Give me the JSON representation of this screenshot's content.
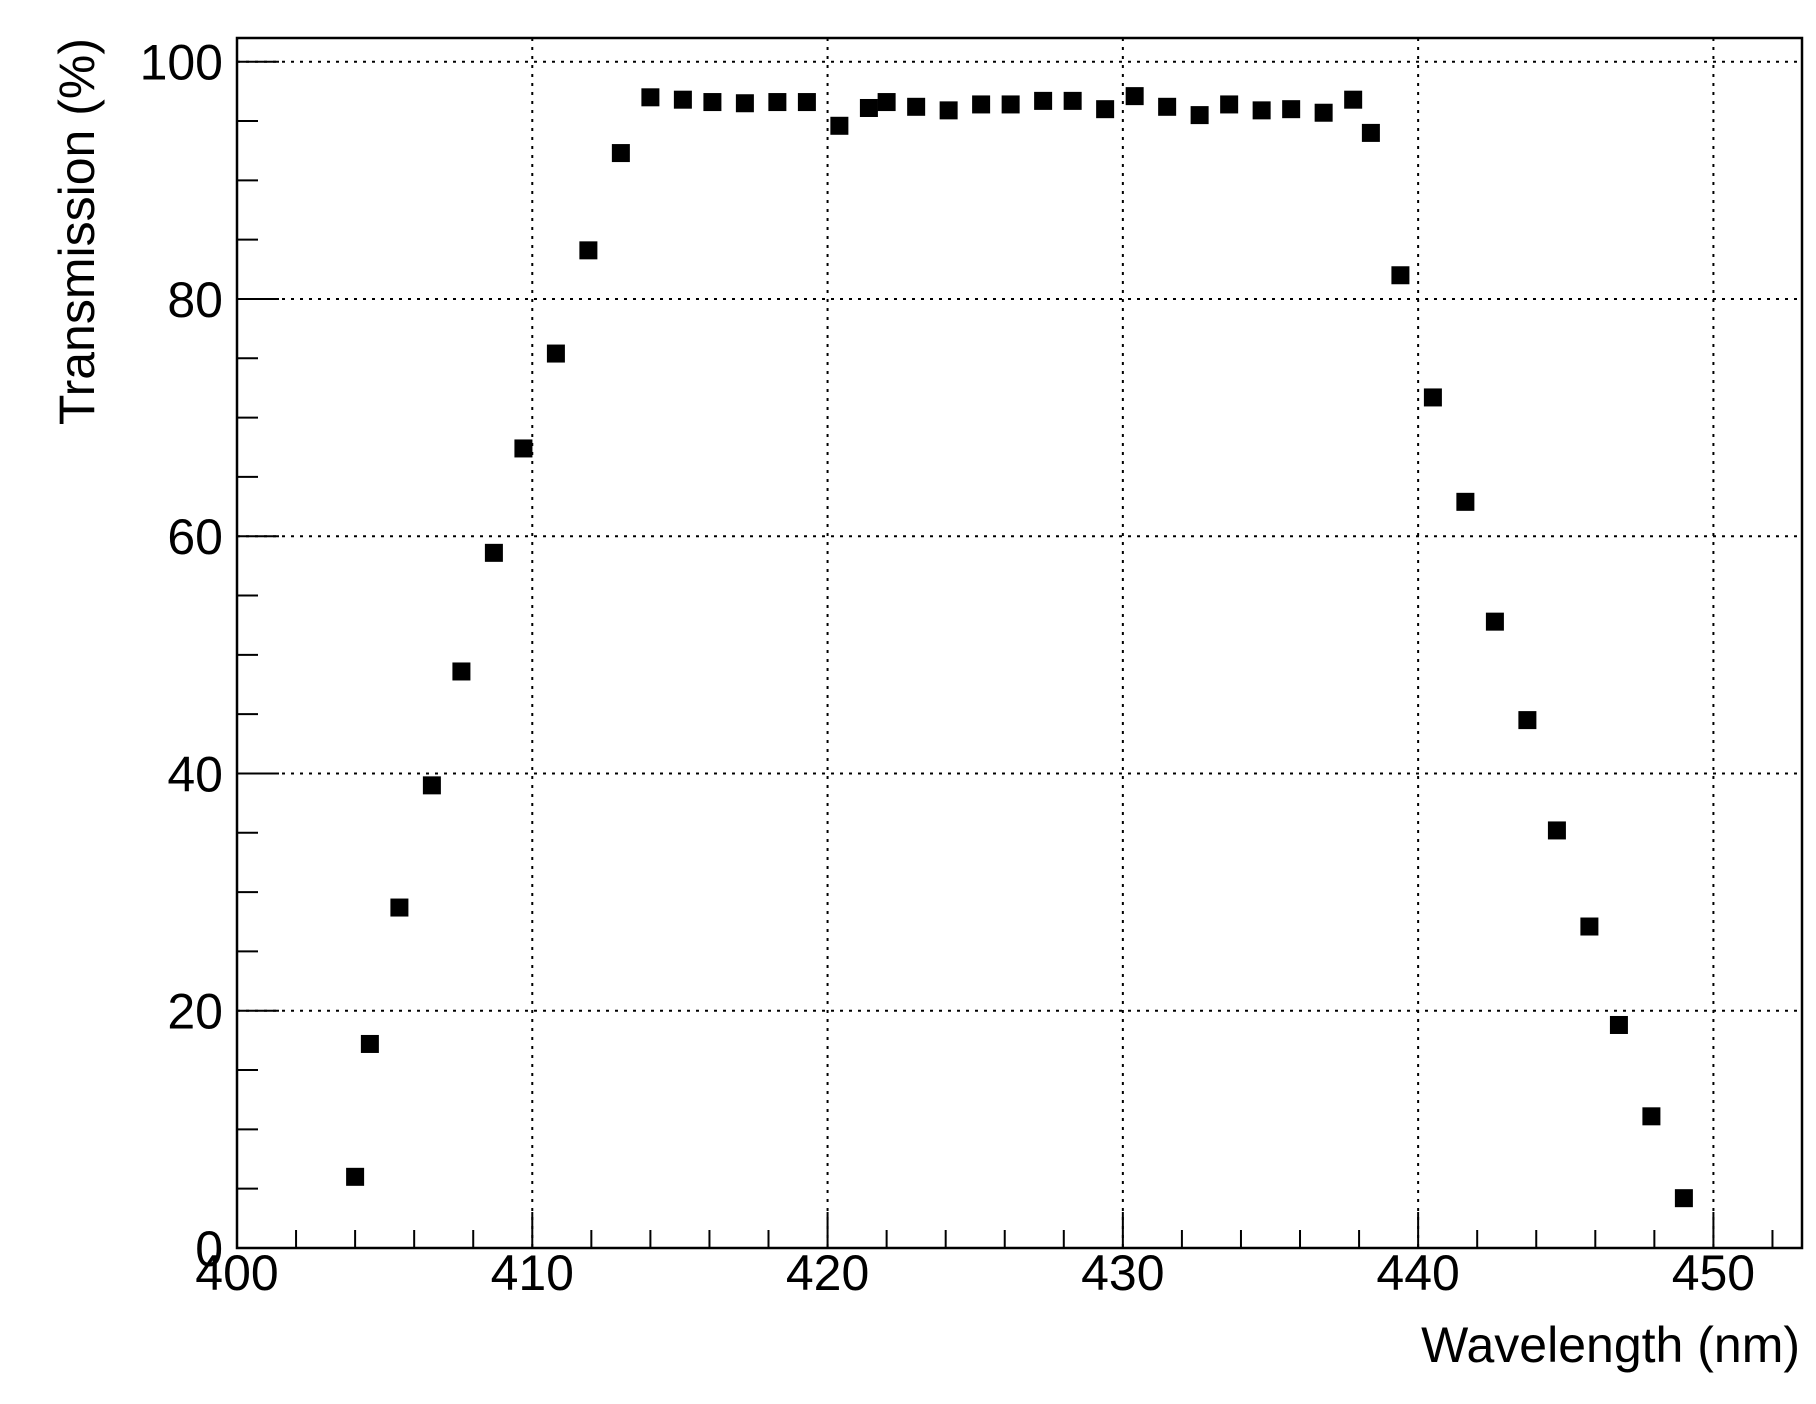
{
  "chart_data": {
    "type": "scatter",
    "x_label": "Wavelength (nm)",
    "y_label": "Transmission (%)",
    "x": [
      404.0,
      404.5,
      405.5,
      406.6,
      407.6,
      408.7,
      409.7,
      410.8,
      411.9,
      413.0,
      414.0,
      415.1,
      416.1,
      417.2,
      418.3,
      419.3,
      420.4,
      421.4,
      422.0,
      423.0,
      424.1,
      425.2,
      426.2,
      427.3,
      428.3,
      429.4,
      430.4,
      431.5,
      432.6,
      433.6,
      434.7,
      435.7,
      436.8,
      437.8,
      438.4,
      439.4,
      440.5,
      441.6,
      442.6,
      443.7,
      444.7,
      445.8,
      446.8,
      447.9,
      449.0
    ],
    "values": [
      6.0,
      17.2,
      28.7,
      39.0,
      48.6,
      58.6,
      67.4,
      75.4,
      84.1,
      92.3,
      97.0,
      96.8,
      96.6,
      96.5,
      96.6,
      96.6,
      94.6,
      96.1,
      96.6,
      96.2,
      95.9,
      96.4,
      96.4,
      96.7,
      96.7,
      96.0,
      97.1,
      96.2,
      95.5,
      96.4,
      95.9,
      96.0,
      95.7,
      96.8,
      94.0,
      82.0,
      71.7,
      62.9,
      52.8,
      44.5,
      35.2,
      27.1,
      18.8,
      11.1,
      4.2
    ],
    "color": "#000000",
    "xlim": [
      400,
      453
    ],
    "ylim": [
      0,
      102
    ],
    "xticks": [
      400,
      410,
      420,
      430,
      440,
      450
    ],
    "yticks": [
      0,
      20,
      40,
      60,
      80,
      100
    ],
    "xminorticks": [
      402,
      404,
      406,
      408,
      412,
      414,
      416,
      418,
      422,
      424,
      426,
      428,
      432,
      434,
      436,
      438,
      442,
      444,
      446,
      448,
      452
    ],
    "yminorticks": [
      5,
      10,
      15,
      25,
      30,
      35,
      45,
      50,
      55,
      65,
      70,
      75,
      85,
      90,
      95
    ],
    "grid": true
  }
}
